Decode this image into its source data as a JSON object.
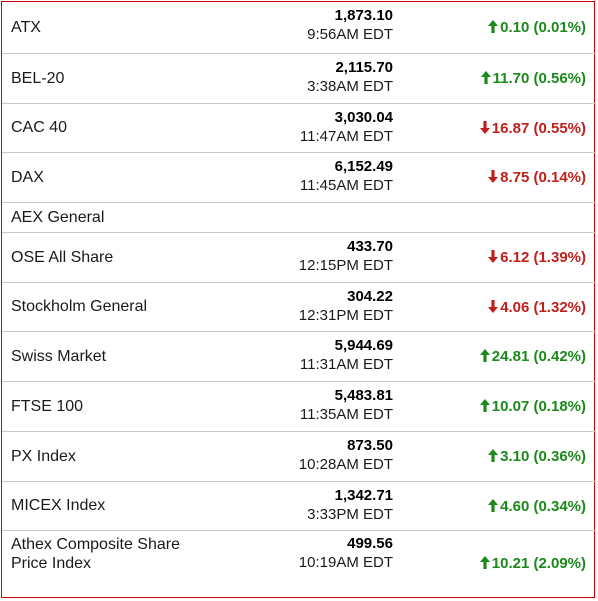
{
  "colors": {
    "up": "#1b8a1b",
    "down": "#c0201b",
    "border": "#d40000"
  },
  "indices": [
    {
      "name": "ATX",
      "price": "1,873.10",
      "time": "9:56AM EDT",
      "direction": "up",
      "change": "0.10 (0.01%)"
    },
    {
      "name": "BEL-20",
      "price": "2,115.70",
      "time": "3:38AM EDT",
      "direction": "up",
      "change": "11.70 (0.56%)"
    },
    {
      "name": "CAC 40",
      "price": "3,030.04",
      "time": "11:47AM EDT",
      "direction": "down",
      "change": "16.87 (0.55%)"
    },
    {
      "name": "DAX",
      "price": "6,152.49",
      "time": "11:45AM EDT",
      "direction": "down",
      "change": "8.75 (0.14%)"
    },
    {
      "name": "AEX General",
      "price": "",
      "time": "",
      "direction": "none",
      "change": ""
    },
    {
      "name": "OSE All Share",
      "price": "433.70",
      "time": "12:15PM EDT",
      "direction": "down",
      "change": "6.12 (1.39%)"
    },
    {
      "name": "Stockholm General",
      "price": "304.22",
      "time": "12:31PM EDT",
      "direction": "down",
      "change": "4.06 (1.32%)"
    },
    {
      "name": "Swiss Market",
      "price": "5,944.69",
      "time": "11:31AM EDT",
      "direction": "up",
      "change": "24.81 (0.42%)"
    },
    {
      "name": "FTSE 100",
      "price": "5,483.81",
      "time": "11:35AM EDT",
      "direction": "up",
      "change": "10.07 (0.18%)"
    },
    {
      "name": "PX Index",
      "price": "873.50",
      "time": "10:28AM EDT",
      "direction": "up",
      "change": "3.10 (0.36%)"
    },
    {
      "name": "MICEX Index",
      "price": "1,342.71",
      "time": "3:33PM EDT",
      "direction": "up",
      "change": "4.60 (0.34%)"
    },
    {
      "name": "Athex Composite Share Price Index",
      "name_lines": [
        "Athex Composite Share",
        "Price Index"
      ],
      "price": "499.56",
      "time": "10:19AM EDT",
      "direction": "up",
      "change": "10.21 (2.09%)"
    }
  ]
}
